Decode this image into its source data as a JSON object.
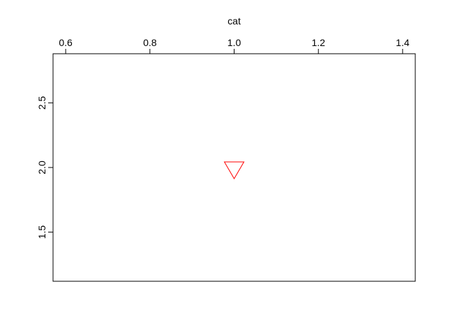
{
  "chart_data": {
    "type": "scatter",
    "title": "",
    "xlabel": "cat",
    "ylabel": "",
    "x_axis_position": "top",
    "xlim": [
      0.57,
      1.43
    ],
    "ylim": [
      1.12,
      2.88
    ],
    "x_ticks": [
      0.6,
      0.8,
      1.0,
      1.2,
      1.4
    ],
    "x_tick_labels": [
      "0.6",
      "0.8",
      "1.0",
      "1.2",
      "1.4"
    ],
    "y_ticks": [
      1.5,
      2.0,
      2.5
    ],
    "y_tick_labels": [
      "1.5",
      "2.0",
      "2.5"
    ],
    "grid": false,
    "legend": "none",
    "series": [
      {
        "marker": "triangle-down",
        "color": "#ff0000",
        "points": [
          {
            "x": 1.0,
            "y": 2.0
          }
        ]
      }
    ]
  }
}
